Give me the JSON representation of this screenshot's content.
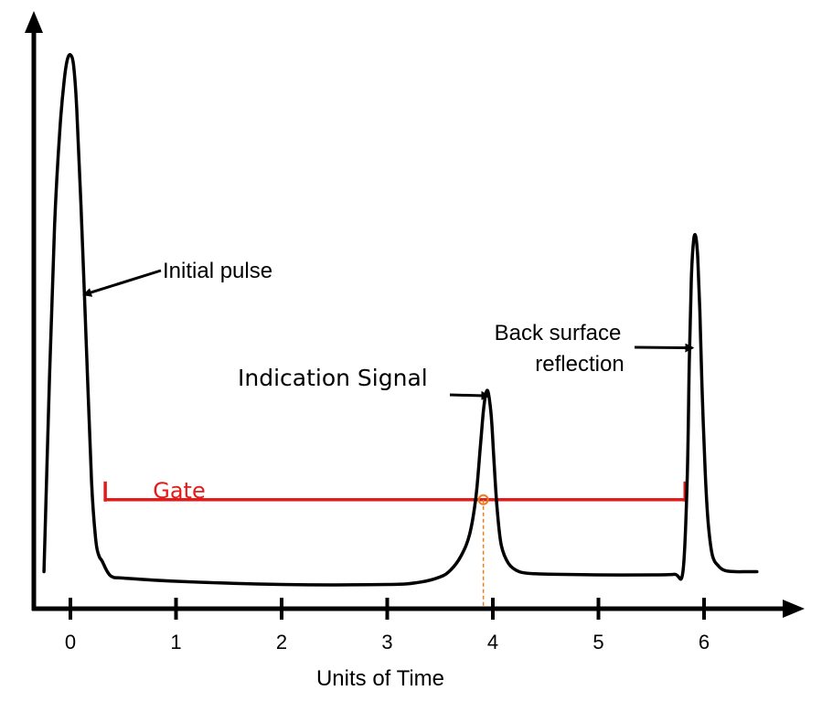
{
  "chart_data": {
    "type": "line",
    "xlabel": "Units of Time",
    "ylabel": "",
    "xlim": [
      -0.33,
      6.5
    ],
    "ylim": [
      0,
      1
    ],
    "x_ticks": [
      0,
      1,
      2,
      3,
      4,
      5,
      6
    ],
    "series": [
      {
        "x": [
          -0.25,
          -0.2,
          -0.15,
          -0.1,
          -0.06,
          -0.03,
          0.0,
          0.03,
          0.06,
          0.1,
          0.15,
          0.2,
          0.24,
          0.27,
          0.3,
          0.35,
          0.4,
          0.5,
          1.0,
          2.0,
          3.0,
          3.3,
          3.5,
          3.6,
          3.7,
          3.78,
          3.84,
          3.88,
          3.91,
          3.93,
          3.95,
          3.97,
          3.99,
          4.01,
          4.04,
          4.08,
          4.15,
          4.25,
          4.4,
          4.6,
          5.0,
          5.5,
          5.72,
          5.8,
          5.84,
          5.86,
          5.88,
          5.9,
          5.92,
          5.94,
          5.96,
          5.98,
          6.01,
          6.04,
          6.08,
          6.14,
          6.2,
          6.3,
          6.4,
          6.5
        ],
        "values": [
          0.03,
          0.38,
          0.68,
          0.86,
          0.95,
          0.99,
          1.0,
          0.98,
          0.9,
          0.72,
          0.46,
          0.2,
          0.09,
          0.06,
          0.05,
          0.03,
          0.02,
          0.018,
          0.012,
          0.006,
          0.006,
          0.01,
          0.02,
          0.033,
          0.06,
          0.1,
          0.17,
          0.26,
          0.33,
          0.36,
          0.37,
          0.35,
          0.31,
          0.24,
          0.15,
          0.08,
          0.045,
          0.03,
          0.026,
          0.025,
          0.024,
          0.024,
          0.025,
          0.03,
          0.2,
          0.42,
          0.58,
          0.65,
          0.66,
          0.62,
          0.52,
          0.38,
          0.22,
          0.12,
          0.06,
          0.04,
          0.032,
          0.03,
          0.03,
          0.03
        ]
      }
    ],
    "annotations": [
      {
        "text": "Initial pulse",
        "point": [
          0.13,
          0.55
        ]
      },
      {
        "text": "Indication Signal",
        "point": [
          3.96,
          0.36
        ]
      },
      {
        "text": "Back surface",
        "line2": "reflection",
        "point": [
          5.89,
          0.45
        ]
      }
    ],
    "gate": {
      "label": "Gate",
      "x_start": 0.33,
      "x_end": 5.82,
      "level": 0.165,
      "color": "#e31b1b",
      "crossing_x": 3.91,
      "crossing_color": "#e87d1e"
    },
    "grid": false,
    "legend": "none"
  }
}
